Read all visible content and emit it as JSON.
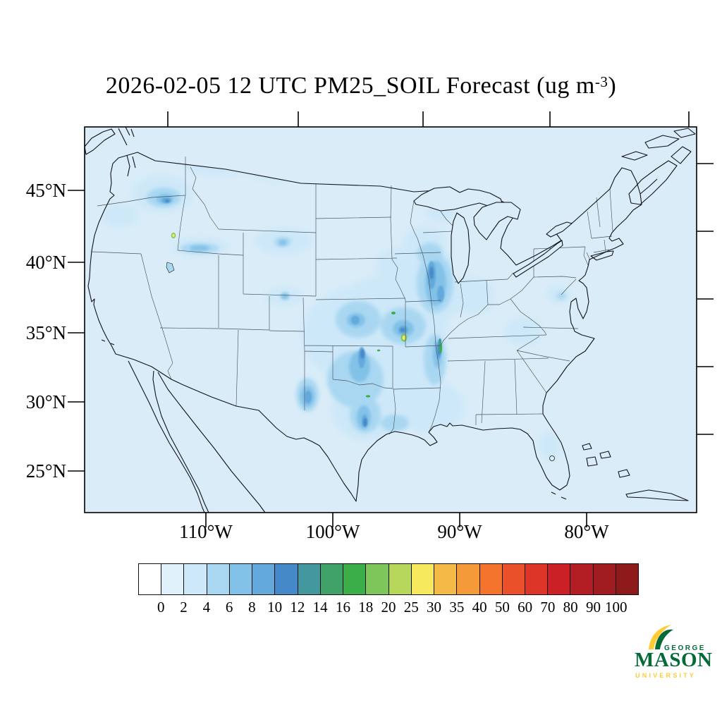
{
  "title": {
    "text": "2026-02-05 12 UTC PM25_SOIL Forecast (ug m",
    "exponent": "-3",
    "suffix": ")"
  },
  "axes": {
    "lat_labels": [
      "45°N",
      "40°N",
      "35°N",
      "30°N",
      "25°N"
    ],
    "lon_labels": [
      "110°W",
      "100°W",
      "90°W",
      "80°W"
    ]
  },
  "colorbar": {
    "tick_labels": [
      "0",
      "2",
      "4",
      "6",
      "8",
      "10",
      "12",
      "14",
      "16",
      "18",
      "20",
      "25",
      "30",
      "35",
      "40",
      "50",
      "60",
      "70",
      "80",
      "90",
      "100"
    ],
    "colors": [
      "#ffffff",
      "#e0f1fb",
      "#cde8f8",
      "#a9d7f2",
      "#82c1e8",
      "#63a9db",
      "#4689c9",
      "#42989c",
      "#40a169",
      "#3cae49",
      "#7cc65a",
      "#b6d65c",
      "#f7e95e",
      "#f5ba45",
      "#f49a38",
      "#f4742e",
      "#ea512a",
      "#dd3528",
      "#cb2026",
      "#b31e24",
      "#a01c20",
      "#8c1a1a"
    ]
  },
  "map_colors": {
    "ocean_and_land_base": "#d9ecf8",
    "coastline": "#101418",
    "state_border": "#4a5560"
  },
  "logo": {
    "george": "GEORGE",
    "mason": "MASON",
    "university": "UNIVERSITY",
    "green": "#046a38",
    "gold": "#ffcc33"
  },
  "chart_data": {
    "type": "heatmap",
    "title": "2026-02-05 12 UTC PM25_SOIL Forecast (ug m-3)",
    "variable": "PM25_SOIL",
    "units": "ug m-3",
    "forecast_time": "2026-02-05 12 UTC",
    "region": "Continental United States",
    "projection_ticks": {
      "lat_deg_n": [
        45,
        40,
        35,
        30,
        25
      ],
      "lon_deg_w": [
        110,
        100,
        90,
        80
      ]
    },
    "colorbar_bin_edges": [
      0,
      2,
      4,
      6,
      8,
      10,
      12,
      14,
      16,
      18,
      20,
      25,
      30,
      35,
      40,
      50,
      60,
      70,
      80,
      90,
      100
    ],
    "displayed_value_summary": "Background mostly 0-4; plumes of 4-16 from Illinois through Missouri, Arkansas, Oklahoma and the Texas panhandle; isolated 16-30 spots in central Missouri, the lower Mississippi River valley, north Texas and eastern Washington; small 25-30 maxima in central Missouri and near the Idaho-Utah border",
    "legend_position": "bottom",
    "grid": false
  }
}
